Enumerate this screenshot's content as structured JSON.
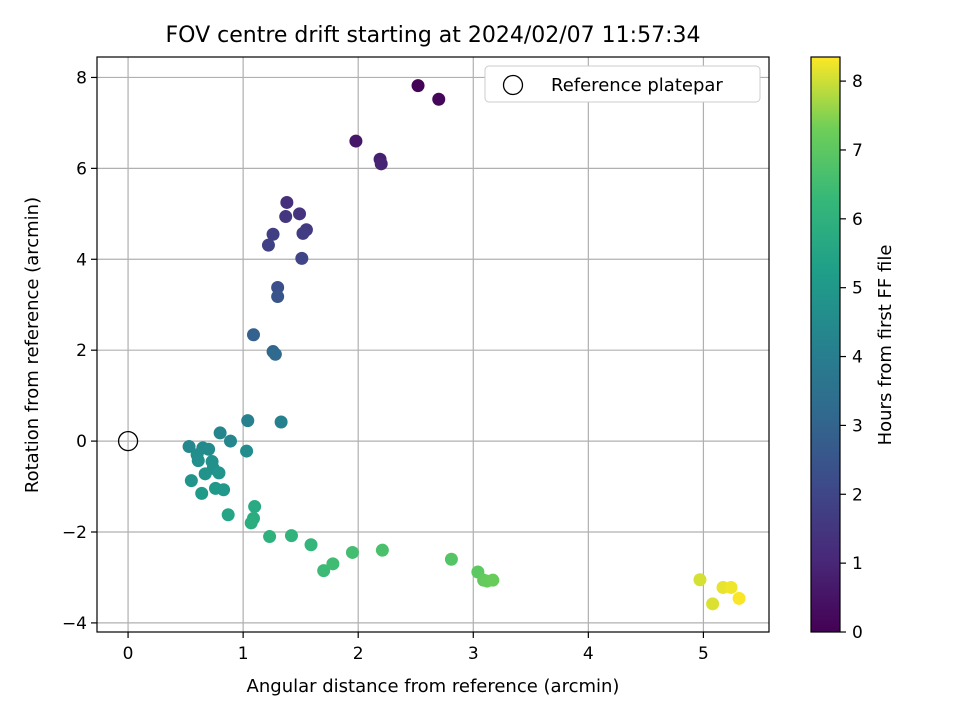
{
  "chart_data": {
    "type": "scatter",
    "title": "FOV centre drift starting at 2024/02/07 11:57:34",
    "xlabel": "Angular distance from reference (arcmin)",
    "ylabel": "Rotation from reference (arcmin)",
    "xlim": [
      -0.27,
      5.57
    ],
    "ylim": [
      -4.2,
      8.45
    ],
    "xticks": [
      0,
      1,
      2,
      3,
      4,
      5
    ],
    "yticks": [
      -4,
      -2,
      0,
      2,
      4,
      6,
      8
    ],
    "grid": true,
    "legend": {
      "position": "top-right",
      "entries": [
        "Reference platepar"
      ]
    },
    "reference_point": {
      "x": 0,
      "y": 0
    },
    "colorbar": {
      "label": "Hours from first FF file",
      "colormap": "viridis",
      "range": [
        0,
        8.35
      ],
      "ticks": [
        0,
        1,
        2,
        3,
        4,
        5,
        6,
        7,
        8
      ]
    },
    "points": [
      {
        "x": 2.52,
        "y": 7.82,
        "c": 0.05
      },
      {
        "x": 2.7,
        "y": 7.52,
        "c": 0.15
      },
      {
        "x": 1.98,
        "y": 6.6,
        "c": 0.6
      },
      {
        "x": 2.19,
        "y": 6.2,
        "c": 0.8
      },
      {
        "x": 2.2,
        "y": 6.1,
        "c": 0.9
      },
      {
        "x": 1.38,
        "y": 5.25,
        "c": 1.3
      },
      {
        "x": 1.49,
        "y": 5.0,
        "c": 1.4
      },
      {
        "x": 1.37,
        "y": 4.94,
        "c": 1.5
      },
      {
        "x": 1.55,
        "y": 4.65,
        "c": 1.6
      },
      {
        "x": 1.52,
        "y": 4.57,
        "c": 1.7
      },
      {
        "x": 1.26,
        "y": 4.55,
        "c": 1.75
      },
      {
        "x": 1.22,
        "y": 4.31,
        "c": 1.85
      },
      {
        "x": 1.51,
        "y": 4.02,
        "c": 1.95
      },
      {
        "x": 1.3,
        "y": 3.38,
        "c": 2.3
      },
      {
        "x": 1.3,
        "y": 3.18,
        "c": 2.45
      },
      {
        "x": 1.09,
        "y": 2.34,
        "c": 2.9
      },
      {
        "x": 1.26,
        "y": 1.97,
        "c": 3.1
      },
      {
        "x": 1.28,
        "y": 1.91,
        "c": 3.2
      },
      {
        "x": 1.04,
        "y": 0.45,
        "c": 4.1
      },
      {
        "x": 1.33,
        "y": 0.42,
        "c": 4.15
      },
      {
        "x": 0.8,
        "y": 0.18,
        "c": 4.3
      },
      {
        "x": 0.53,
        "y": -0.12,
        "c": 4.4
      },
      {
        "x": 0.65,
        "y": -0.15,
        "c": 4.45
      },
      {
        "x": 0.7,
        "y": -0.18,
        "c": 4.5
      },
      {
        "x": 0.89,
        "y": 0.0,
        "c": 4.35
      },
      {
        "x": 1.03,
        "y": -0.22,
        "c": 4.55
      },
      {
        "x": 0.6,
        "y": -0.3,
        "c": 4.6
      },
      {
        "x": 0.61,
        "y": -0.43,
        "c": 4.65
      },
      {
        "x": 0.73,
        "y": -0.45,
        "c": 4.7
      },
      {
        "x": 0.74,
        "y": -0.6,
        "c": 4.75
      },
      {
        "x": 0.67,
        "y": -0.72,
        "c": 4.8
      },
      {
        "x": 0.79,
        "y": -0.7,
        "c": 4.85
      },
      {
        "x": 0.55,
        "y": -0.87,
        "c": 4.9
      },
      {
        "x": 0.76,
        "y": -1.04,
        "c": 5.0
      },
      {
        "x": 0.83,
        "y": -1.07,
        "c": 5.05
      },
      {
        "x": 0.64,
        "y": -1.15,
        "c": 5.1
      },
      {
        "x": 0.87,
        "y": -1.62,
        "c": 5.5
      },
      {
        "x": 1.1,
        "y": -1.44,
        "c": 5.7
      },
      {
        "x": 1.09,
        "y": -1.7,
        "c": 5.8
      },
      {
        "x": 1.07,
        "y": -1.8,
        "c": 5.85
      },
      {
        "x": 1.23,
        "y": -2.1,
        "c": 6.0
      },
      {
        "x": 1.42,
        "y": -2.08,
        "c": 6.1
      },
      {
        "x": 1.59,
        "y": -2.28,
        "c": 6.2
      },
      {
        "x": 1.7,
        "y": -2.85,
        "c": 6.4
      },
      {
        "x": 1.78,
        "y": -2.7,
        "c": 6.45
      },
      {
        "x": 1.95,
        "y": -2.45,
        "c": 6.55
      },
      {
        "x": 2.21,
        "y": -2.4,
        "c": 6.65
      },
      {
        "x": 2.81,
        "y": -2.6,
        "c": 6.85
      },
      {
        "x": 3.04,
        "y": -2.88,
        "c": 7.0
      },
      {
        "x": 3.09,
        "y": -3.06,
        "c": 7.1
      },
      {
        "x": 3.12,
        "y": -3.08,
        "c": 7.15
      },
      {
        "x": 3.17,
        "y": -3.06,
        "c": 7.2
      },
      {
        "x": 4.97,
        "y": -3.05,
        "c": 8.05
      },
      {
        "x": 5.08,
        "y": -3.58,
        "c": 8.1
      },
      {
        "x": 5.17,
        "y": -3.22,
        "c": 8.2
      },
      {
        "x": 5.24,
        "y": -3.22,
        "c": 8.25
      },
      {
        "x": 5.31,
        "y": -3.46,
        "c": 8.32
      }
    ]
  }
}
